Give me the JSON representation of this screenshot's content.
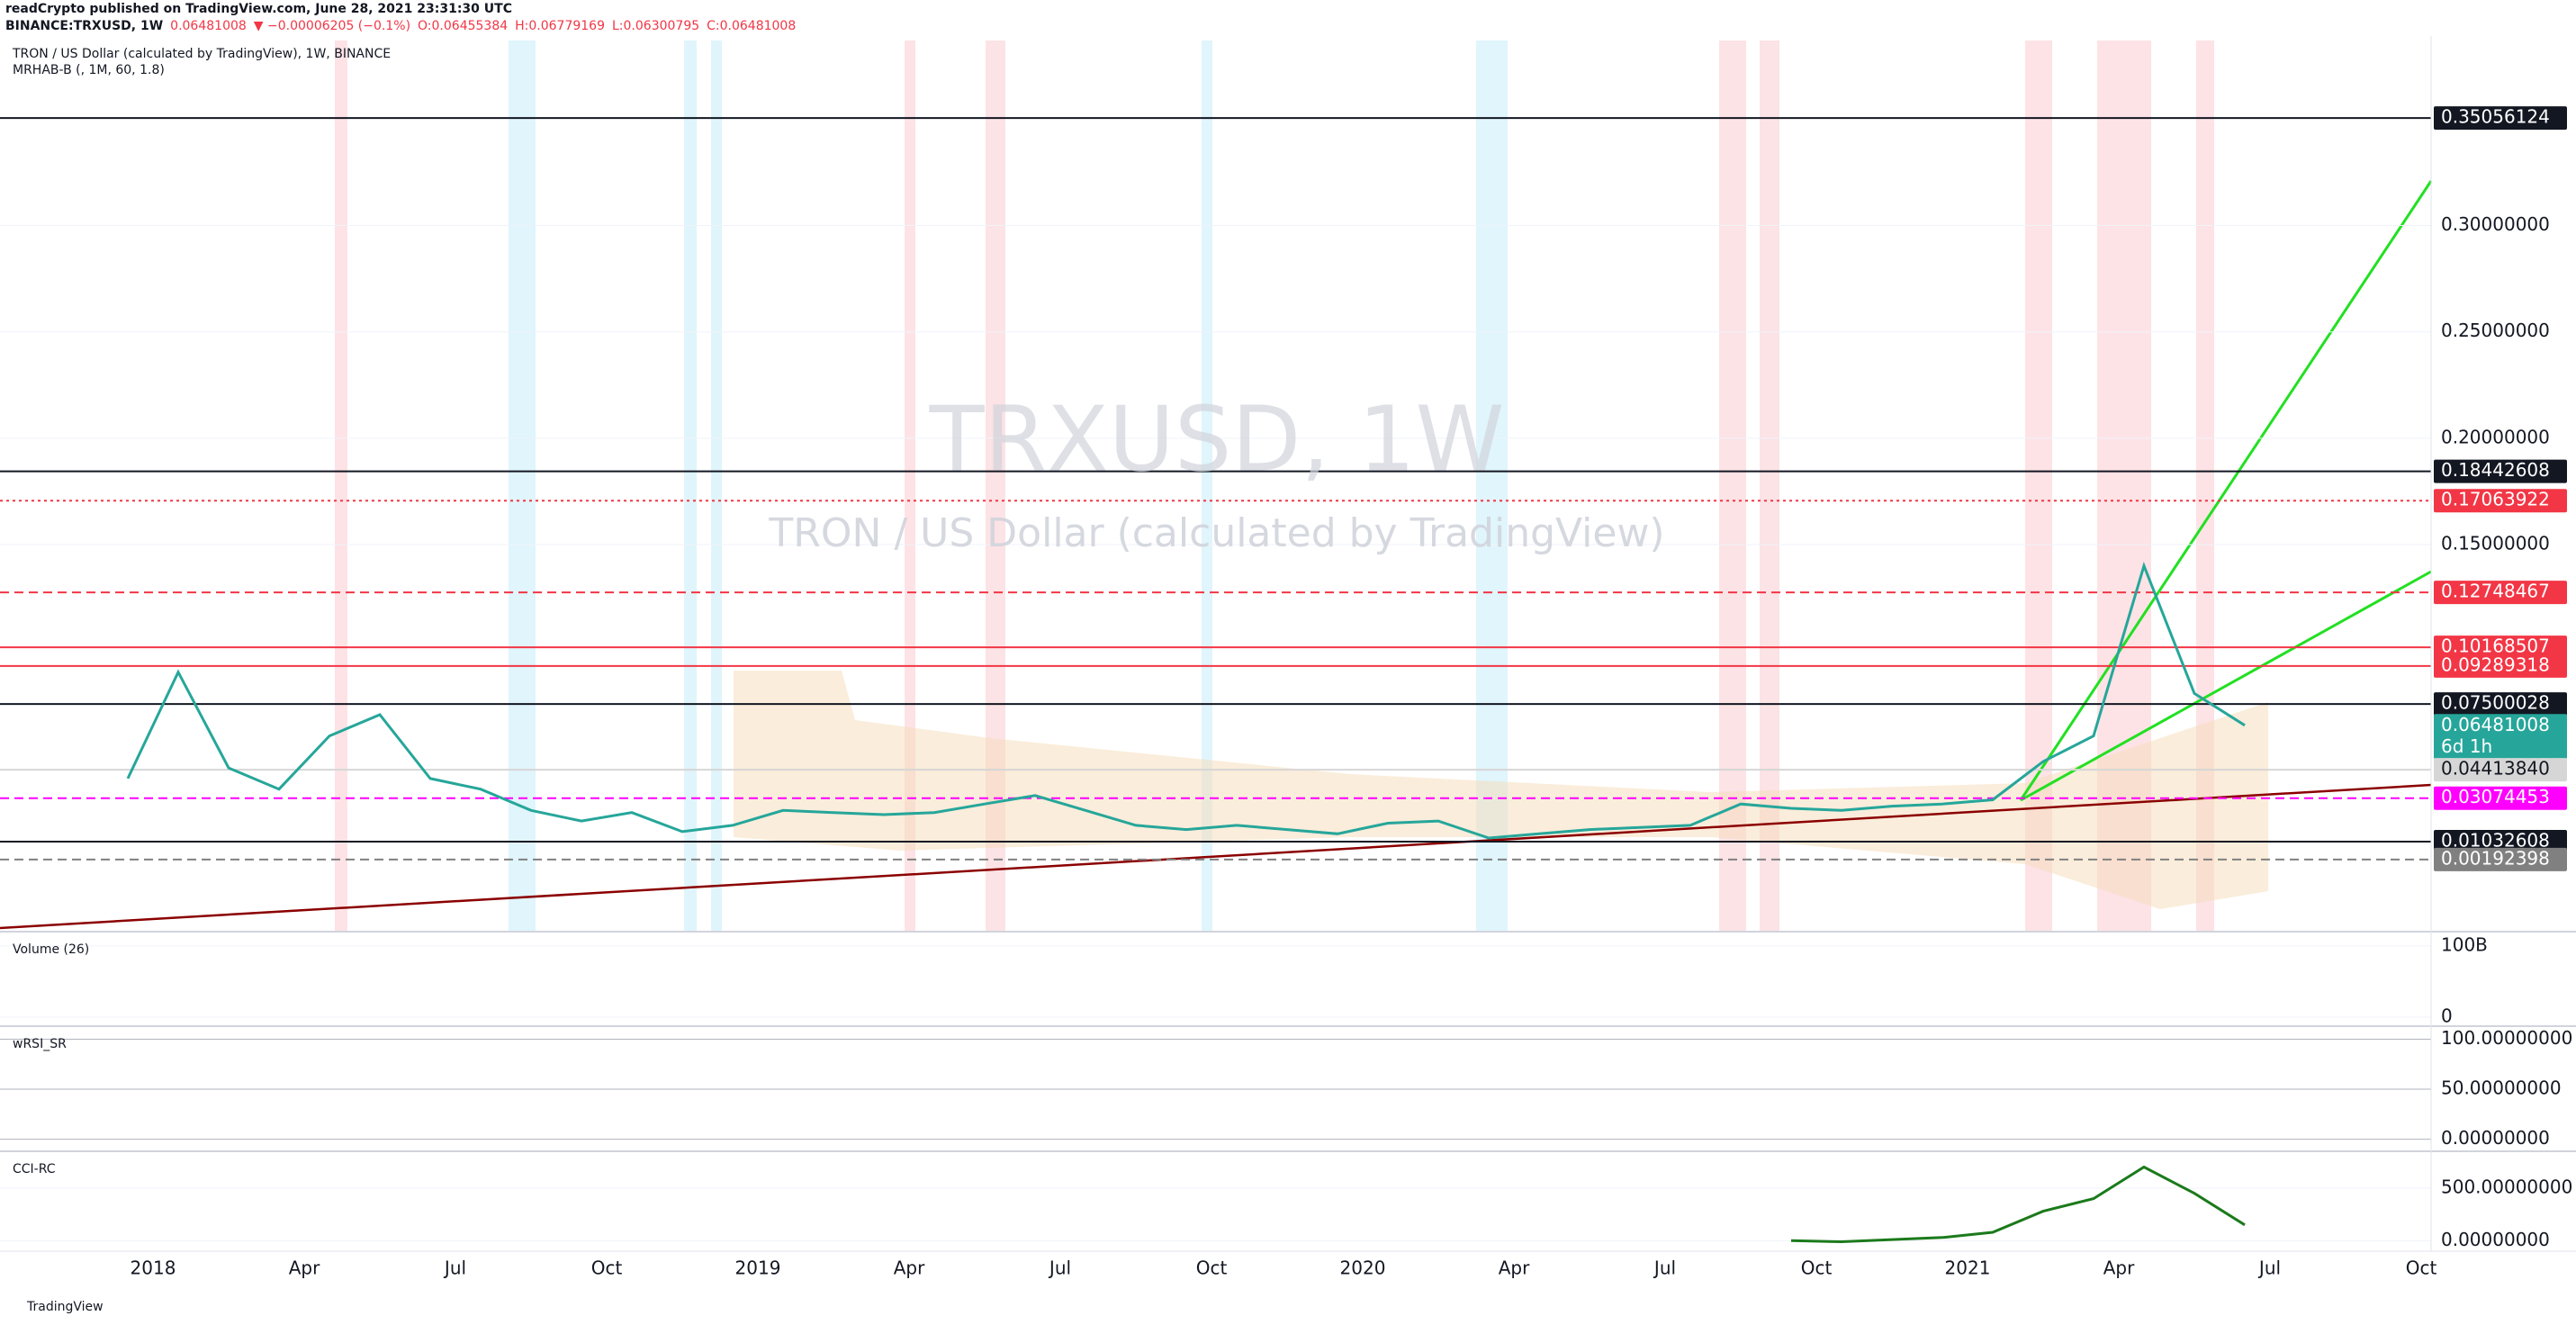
{
  "header": {
    "publisher": "readCrypto published on TradingView.com, June 28, 2021 23:31:30 UTC",
    "symbol": "BINANCE:TRXUSD, 1W",
    "last": "0.06481008",
    "change": "▼ −0.00006205 (−0.1%)",
    "ohlc": [
      "O:0.06455384",
      "H:0.06779169",
      "L:0.06300795",
      "C:0.06481008"
    ]
  },
  "legend": {
    "title": "TRON / US Dollar (calculated by TradingView), 1W, BINANCE",
    "indicator": "MRHAB-B (, 1M, 60, 1.8)"
  },
  "watermark": {
    "symbol": "TRXUSD, 1W",
    "description": "TRON / US Dollar (calculated by TradingView)"
  },
  "time_axis": [
    "2018",
    "Apr",
    "Jul",
    "Oct",
    "2019",
    "Apr",
    "Jul",
    "Oct",
    "2020",
    "Apr",
    "Jul",
    "Oct",
    "2021",
    "Apr",
    "Jul",
    "Oct"
  ],
  "footer": "TradingView",
  "chart_data": [
    {
      "type": "line",
      "color": "#26a69a",
      "x": [
        "2017-12",
        "2018-01",
        "2018-02",
        "2018-03",
        "2018-04",
        "2018-05",
        "2018-06",
        "2018-07",
        "2018-08",
        "2018-09",
        "2018-10",
        "2018-11",
        "2018-12",
        "2019-01",
        "2019-02",
        "2019-03",
        "2019-04",
        "2019-05",
        "2019-06",
        "2019-07",
        "2019-08",
        "2019-09",
        "2019-10",
        "2019-11",
        "2019-12",
        "2020-01",
        "2020-02",
        "2020-03",
        "2020-04",
        "2020-05",
        "2020-06",
        "2020-07",
        "2020-08",
        "2020-09",
        "2020-10",
        "2020-11",
        "2020-12",
        "2021-01",
        "2021-02",
        "2021-03",
        "2021-04",
        "2021-05",
        "2021-06"
      ],
      "values": [
        0.04,
        0.09,
        0.045,
        0.035,
        0.06,
        0.07,
        0.04,
        0.035,
        0.025,
        0.02,
        0.024,
        0.015,
        0.018,
        0.025,
        0.024,
        0.023,
        0.024,
        0.028,
        0.032,
        0.025,
        0.018,
        0.016,
        0.018,
        0.016,
        0.014,
        0.019,
        0.02,
        0.012,
        0.014,
        0.016,
        0.017,
        0.018,
        0.028,
        0.026,
        0.025,
        0.027,
        0.028,
        0.03,
        0.048,
        0.06,
        0.14,
        0.08,
        0.065
      ],
      "ylim": [
        -0.032,
        0.387
      ],
      "yticks": [
        {
          "value": 0.3,
          "label": "0.30000000"
        },
        {
          "value": 0.25,
          "label": "0.25000000"
        },
        {
          "value": 0.2,
          "label": "0.20000000"
        },
        {
          "value": 0.15,
          "label": "0.15000000"
        }
      ],
      "levels": [
        {
          "value": 0.35056124,
          "label": "0.35056124",
          "color": "#131722",
          "dash": "solid"
        },
        {
          "value": 0.18442608,
          "label": "0.18442608",
          "color": "#131722",
          "dash": "solid"
        },
        {
          "value": 0.17063922,
          "label": "0.17063922",
          "color": "#f23645",
          "dash": "dotted"
        },
        {
          "value": 0.12748467,
          "label": "0.12748467",
          "color": "#f23645",
          "dash": "dashed"
        },
        {
          "value": 0.10168507,
          "label": "0.10168507",
          "color": "#f23645",
          "dash": "solid"
        },
        {
          "value": 0.09289318,
          "label": "0.09289318",
          "color": "#f23645",
          "dash": "solid"
        },
        {
          "value": 0.07500028,
          "label": "0.07500028",
          "color": "#131722",
          "dash": "solid"
        },
        {
          "value": 0.06481008,
          "label": "0.06481008",
          "color": "#26a69a",
          "dash": "none"
        },
        {
          "value": 0.0441384,
          "label": "0.04413840",
          "color": "#d6d6d6",
          "dash": "solid"
        },
        {
          "value": 0.03074453,
          "label": "0.03074453",
          "color": "#ff00ff",
          "dash": "dashed"
        },
        {
          "value": 0.01032608,
          "label": "0.01032608",
          "color": "#131722",
          "dash": "solid"
        },
        {
          "value": 0.00192398,
          "label": "0.00192398",
          "color": "#808080",
          "dash": "dashed"
        }
      ],
      "countdown": "6d 1h"
    },
    {
      "type": "volume",
      "title": "Volume (26)",
      "ylim": [
        -12700000000,
        120000000000
      ],
      "yticks": [
        {
          "value": 100000000000,
          "label": "100B"
        },
        0
      ]
    },
    {
      "type": "oscillator",
      "title": "wRSI_SR",
      "ylim": [
        -12,
        113
      ],
      "yticks": [
        {
          "value": 100,
          "label": "100.00000000"
        },
        {
          "value": 50,
          "label": "50.00000000"
        },
        {
          "value": 0,
          "label": "0.00000000"
        }
      ]
    },
    {
      "type": "line",
      "title": "CCI-RC",
      "color": "#1b7a1b",
      "x": [
        "2020-09",
        "2020-10",
        "2020-11",
        "2020-12",
        "2021-01",
        "2021-02",
        "2021-03",
        "2021-04",
        "2021-05",
        "2021-06"
      ],
      "values": [
        0,
        -10,
        10,
        30,
        80,
        280,
        400,
        700,
        450,
        150
      ],
      "ylim": [
        -100,
        850
      ],
      "yticks": [
        {
          "value": 500,
          "label": "500.00000000"
        },
        {
          "value": 0,
          "label": "0.00000000"
        }
      ]
    }
  ]
}
